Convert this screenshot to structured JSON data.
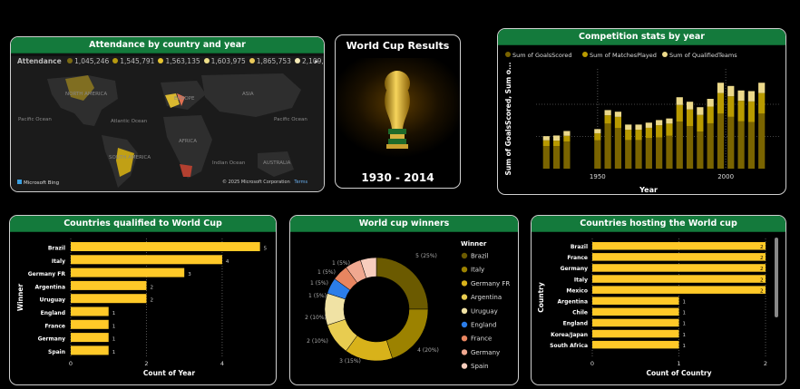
{
  "colors": {
    "header_green": "#147a3c",
    "bar_yellow": "#ffc928",
    "gold_dark": "#7a6400",
    "gold_mid": "#b89a00",
    "gold_light": "#ecd98a"
  },
  "attendance": {
    "title": "Attendance by country and year",
    "legend_label": "Attendance",
    "legend_values": [
      {
        "label": "1,045,246",
        "color": "#7a6a12"
      },
      {
        "label": "1,545,791",
        "color": "#b79a10"
      },
      {
        "label": "1,563,135",
        "color": "#e6c430"
      },
      {
        "label": "1,603,975",
        "color": "#efe08a"
      },
      {
        "label": "1,865,753",
        "color": "#e9c95a"
      },
      {
        "label": "2,109,723",
        "color": "#f4eab6"
      }
    ],
    "map_labels": [
      "NORTH AMERICA",
      "EUROPE",
      "ASIA",
      "Pacific Ocean",
      "Atlantic Ocean",
      "AFRICA",
      "SOUTH AMERICA",
      "Indian Ocean",
      "AUSTRALIA",
      "Pacific Ocean"
    ],
    "footer_left": "Microsoft Bing",
    "footer_right": "© 2025 Microsoft Corporation",
    "footer_terms": "Terms"
  },
  "results": {
    "title": "World Cup Results",
    "years": "1930 - 2014"
  },
  "competition": {
    "title": "Competition stats by year",
    "legend": [
      "Sum of GoalsScored",
      "Sum of MatchesPlayed",
      "Sum of QualifiedTeams"
    ],
    "xlabel": "Year",
    "ylabel": "Sum of GoalsScored, Sum o..."
  },
  "qualified": {
    "title": "Countries qualified to World Cup",
    "ylabel": "Winner",
    "xlabel": "Count of Year"
  },
  "winners": {
    "title": "World cup winners",
    "legend_title": "Winner",
    "legend_items": [
      {
        "label": "Brazil",
        "color": "#6b5a00"
      },
      {
        "label": "Italy",
        "color": "#9c8200"
      },
      {
        "label": "Germany FR",
        "color": "#d8b21a"
      },
      {
        "label": "Argentina",
        "color": "#e8cc50"
      },
      {
        "label": "Uruguay",
        "color": "#f0e2a4"
      },
      {
        "label": "England",
        "color": "#2b7de9"
      },
      {
        "label": "France",
        "color": "#e88560"
      },
      {
        "label": "Germany",
        "color": "#f0a890"
      },
      {
        "label": "Spain",
        "color": "#f7cdbd"
      }
    ],
    "slice_labels": [
      "5 (25%)",
      "4 (20%)",
      "3 (15%)",
      "2 (10%)",
      "2 (10%)",
      "1 (5%)",
      "1 (5%)",
      "1 (5%)",
      "1 (5%)"
    ]
  },
  "hosting": {
    "title": "Countries hosting the World cup",
    "ylabel": "Country",
    "xlabel": "Count of Country"
  },
  "chart_data": [
    {
      "type": "bar",
      "title": "Competition stats by year",
      "xlabel": "Year",
      "ylabel": "Sum of GoalsScored, Sum o...",
      "x_ticks": [
        "1950",
        "2000"
      ],
      "categories": [
        "1930",
        "1934",
        "1938",
        "1950",
        "1954",
        "1958",
        "1962",
        "1966",
        "1970",
        "1974",
        "1978",
        "1982",
        "1986",
        "1990",
        "1994",
        "1998",
        "2002",
        "2006",
        "2010",
        "2014"
      ],
      "series": [
        {
          "name": "Sum of GoalsScored",
          "values": [
            70,
            70,
            84,
            88,
            140,
            126,
            89,
            89,
            95,
            97,
            102,
            146,
            132,
            115,
            141,
            171,
            161,
            147,
            145,
            171
          ]
        },
        {
          "name": "Sum of MatchesPlayed",
          "values": [
            18,
            17,
            18,
            22,
            26,
            35,
            32,
            32,
            32,
            38,
            38,
            52,
            52,
            52,
            52,
            64,
            64,
            64,
            64,
            64
          ]
        },
        {
          "name": "Sum of QualifiedTeams",
          "values": [
            13,
            16,
            15,
            13,
            16,
            16,
            16,
            16,
            16,
            16,
            16,
            24,
            24,
            24,
            24,
            32,
            32,
            32,
            32,
            32
          ]
        }
      ]
    },
    {
      "type": "bar",
      "title": "Countries qualified to World Cup",
      "categories": [
        "Brazil",
        "Italy",
        "Germany FR",
        "Argentina",
        "Uruguay",
        "England",
        "France",
        "Germany",
        "Spain"
      ],
      "values": [
        5,
        4,
        3,
        2,
        2,
        1,
        1,
        1,
        1
      ],
      "xlim": [
        0,
        5
      ],
      "x_ticks": [
        "0",
        "2",
        "4"
      ],
      "xlabel": "Count of Year",
      "ylabel": "Winner"
    },
    {
      "type": "pie",
      "title": "World cup winners",
      "categories": [
        "Brazil",
        "Italy",
        "Germany FR",
        "Argentina",
        "Uruguay",
        "England",
        "France",
        "Germany",
        "Spain"
      ],
      "values": [
        5,
        4,
        3,
        2,
        2,
        1,
        1,
        1,
        1
      ]
    },
    {
      "type": "bar",
      "title": "Countries hosting the World cup",
      "categories": [
        "Brazil",
        "France",
        "Germany",
        "Italy",
        "Mexico",
        "Argentina",
        "Chile",
        "England",
        "Korea/Japan",
        "South Africa"
      ],
      "values": [
        2,
        2,
        2,
        2,
        2,
        1,
        1,
        1,
        1,
        1
      ],
      "xlim": [
        0,
        2
      ],
      "x_ticks": [
        "0",
        "1",
        "2"
      ],
      "xlabel": "Count of Country",
      "ylabel": "Country"
    }
  ]
}
